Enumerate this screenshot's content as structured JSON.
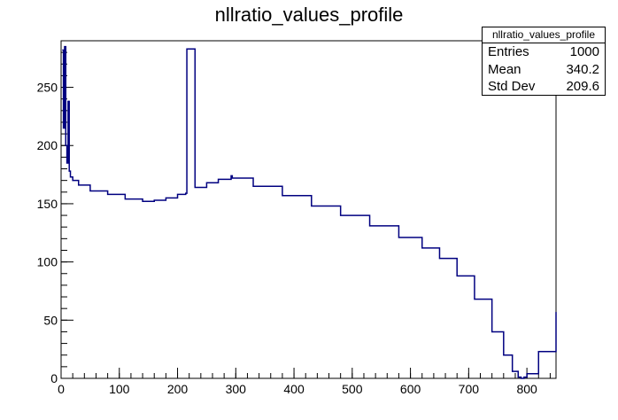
{
  "chart_data": {
    "type": "line",
    "title": "nllratio_values_profile",
    "xlabel": "",
    "ylabel": "",
    "xlim": [
      0,
      850
    ],
    "ylim": [
      0,
      290
    ],
    "x_ticks": [
      0,
      100,
      200,
      300,
      400,
      500,
      600,
      700,
      800
    ],
    "y_ticks": [
      0,
      50,
      100,
      150,
      200,
      250
    ],
    "x_tick_labels": [
      "0",
      "100",
      "200",
      "300",
      "400",
      "500",
      "600",
      "700",
      "800"
    ],
    "y_tick_labels": [
      "0",
      "50",
      "100",
      "150",
      "200",
      "250"
    ],
    "line_color": "#000080",
    "grid": false,
    "series": [
      {
        "x": [
          2,
          4,
          6,
          8,
          10,
          12,
          14,
          16,
          20,
          30,
          50,
          80,
          110,
          140,
          160,
          180,
          200,
          214,
          216,
          230,
          250,
          270,
          292,
          294,
          330,
          380,
          430,
          480,
          530,
          580,
          620,
          650,
          680,
          710,
          740,
          760,
          775,
          785,
          790,
          795,
          800,
          820,
          850
        ],
        "y": [
          282,
          215,
          285,
          200,
          185,
          238,
          178,
          173,
          170,
          166,
          161,
          158,
          154,
          152,
          153,
          155,
          158,
          159,
          283,
          164,
          168,
          171,
          174,
          172,
          165,
          157,
          148,
          140,
          131,
          121,
          112,
          103,
          88,
          68,
          40,
          20,
          6,
          1,
          0,
          1,
          4,
          23,
          57
        ]
      }
    ]
  },
  "stats_box": {
    "title": "nllratio_values_profile",
    "rows": [
      {
        "label": "Entries",
        "value": "1000"
      },
      {
        "label": "Mean",
        "value": "340.2"
      },
      {
        "label": "Std Dev",
        "value": "209.6"
      }
    ]
  }
}
